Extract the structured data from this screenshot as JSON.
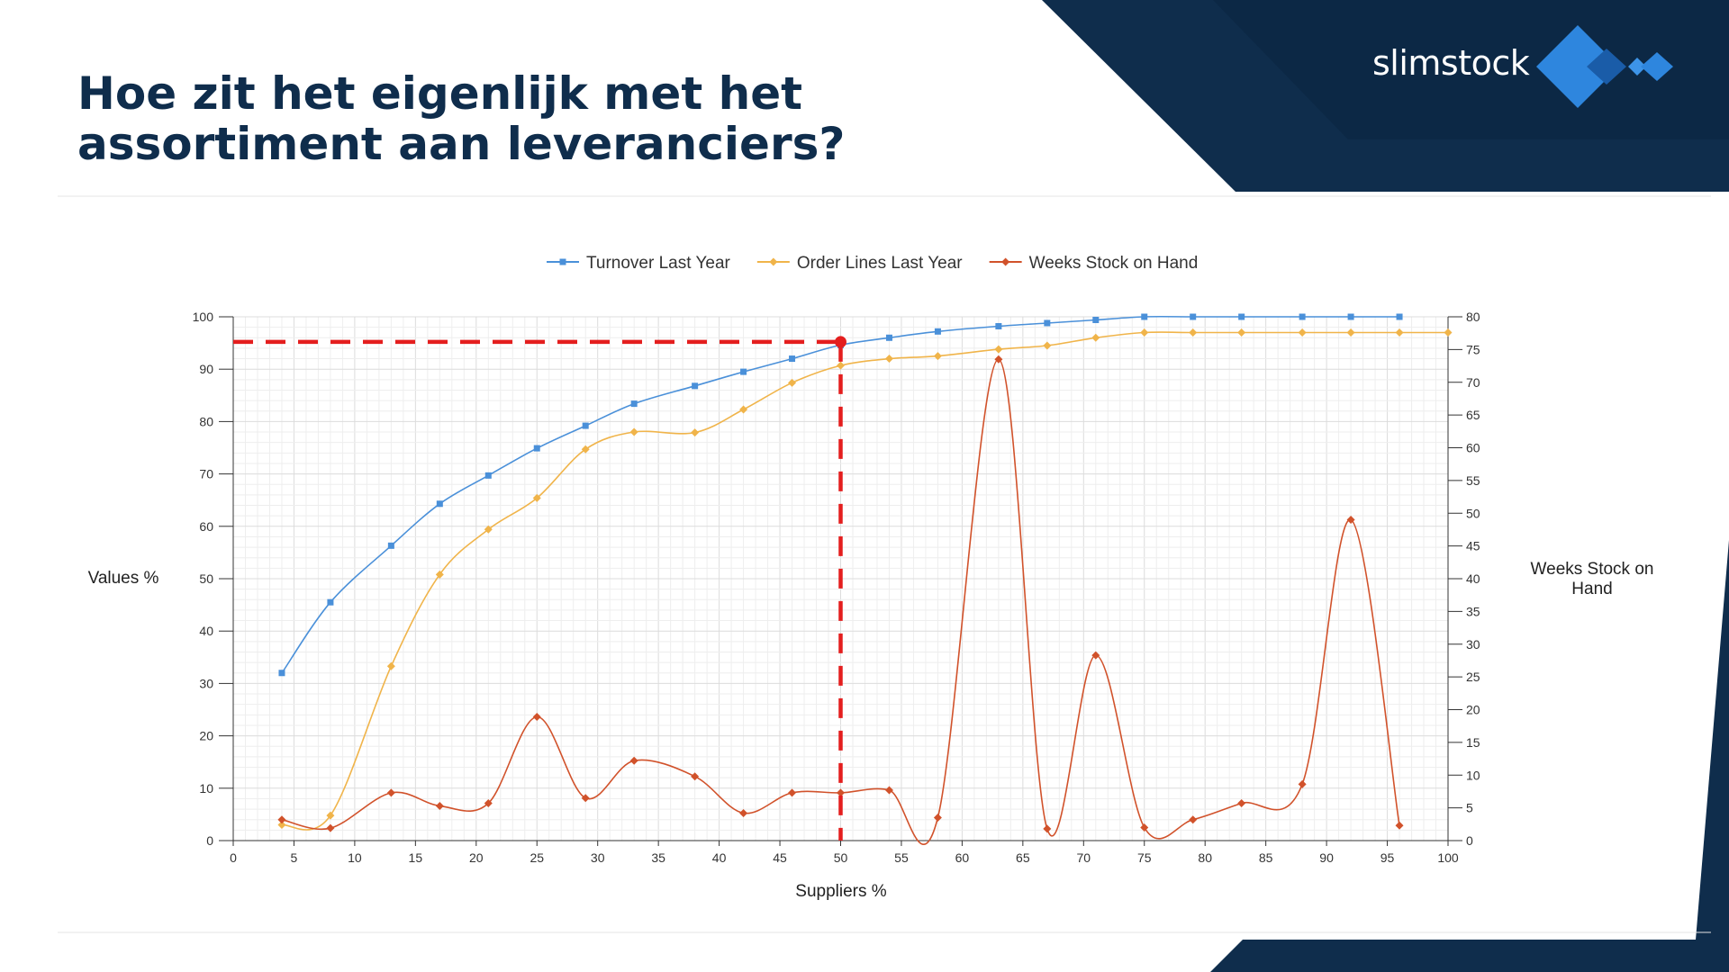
{
  "slide": {
    "title": "Hoe zit het eigenlijk met het assortiment aan leveranciers?",
    "logo_text": "slimstock",
    "colors": {
      "navy": "#0f2d4c",
      "navy_light": "#0d3358",
      "accent_blue": "#2f7fd0",
      "logo_blue": "#2e86de"
    }
  },
  "chart_data": {
    "type": "line",
    "xlabel": "Suppliers %",
    "ylabel": "Values %",
    "y2label": "Weeks Stock on Hand",
    "xlim": [
      0,
      100
    ],
    "ylim": [
      0,
      100
    ],
    "y2lim": [
      0,
      80
    ],
    "xticks": [
      0,
      5,
      10,
      15,
      20,
      25,
      30,
      35,
      40,
      45,
      50,
      55,
      60,
      65,
      70,
      75,
      80,
      85,
      90,
      95,
      100
    ],
    "yticks": [
      0,
      10,
      20,
      30,
      40,
      50,
      60,
      70,
      80,
      90,
      100
    ],
    "y2ticks": [
      0,
      5,
      10,
      15,
      20,
      25,
      30,
      35,
      40,
      45,
      50,
      55,
      60,
      65,
      70,
      75,
      80
    ],
    "grid": true,
    "legend_position": "top",
    "series": [
      {
        "name": "Turnover Last Year",
        "axis": "left",
        "color": "#4a90d9",
        "marker": "square",
        "x": [
          4,
          8,
          13,
          17,
          21,
          25,
          29,
          33,
          38,
          42,
          46,
          50,
          54,
          58,
          63,
          67,
          71,
          75,
          79,
          83,
          88,
          92,
          96
        ],
        "y": [
          32,
          45.5,
          56.3,
          64.3,
          69.7,
          74.9,
          79.2,
          83.4,
          86.8,
          89.5,
          92,
          94.6,
          96,
          97.2,
          98.2,
          98.8,
          99.4,
          100,
          100,
          100,
          100,
          100,
          100
        ]
      },
      {
        "name": "Order Lines Last Year",
        "axis": "left",
        "color": "#f0b44a",
        "marker": "diamond",
        "x": [
          4,
          8,
          13,
          17,
          21,
          25,
          29,
          33,
          38,
          42,
          46,
          50,
          54,
          58,
          63,
          67,
          71,
          75,
          79,
          83,
          88,
          92,
          96,
          100
        ],
        "y": [
          3,
          4.8,
          33.3,
          50.8,
          59.4,
          65.4,
          74.7,
          78,
          77.9,
          82.3,
          87.4,
          90.7,
          92,
          92.5,
          93.8,
          94.5,
          96,
          97,
          97,
          97,
          97,
          97,
          97,
          97
        ]
      },
      {
        "name": "Weeks Stock on Hand",
        "axis": "right",
        "color": "#d1522b",
        "marker": "diamond",
        "x": [
          4,
          8,
          13,
          17,
          21,
          25,
          29,
          33,
          38,
          42,
          46,
          50,
          54,
          58,
          63,
          67,
          71,
          75,
          79,
          83,
          88,
          92,
          96
        ],
        "y": [
          3.2,
          1.9,
          7.3,
          5.3,
          5.7,
          18.9,
          6.5,
          12.2,
          9.8,
          4.2,
          7.3,
          7.3,
          7.7,
          3.5,
          73.5,
          1.8,
          28.3,
          2,
          3.2,
          5.7,
          8.6,
          49,
          2.3
        ]
      }
    ],
    "annotation": {
      "type": "crosshair",
      "color": "#e41e1e",
      "x": 50,
      "y": 95.2
    }
  }
}
